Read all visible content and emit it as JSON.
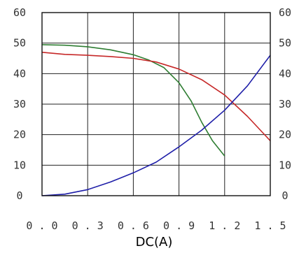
{
  "chart_data": {
    "type": "line",
    "title": "",
    "xlabel": "DC(A)",
    "ylabel": "",
    "xlim": [
      0,
      1.5
    ],
    "ylim": [
      0,
      60
    ],
    "x_ticks": [
      "0.0",
      "0.3",
      "0.6",
      "0.9",
      "1.2",
      "1.5"
    ],
    "y_ticks_left": [
      "0",
      "10",
      "20",
      "30",
      "40",
      "50",
      "60"
    ],
    "y_ticks_right": [
      "0",
      "10",
      "20",
      "30",
      "40",
      "50",
      "60"
    ],
    "grid": true,
    "legend": "none",
    "series": [
      {
        "color": "#2e7d32",
        "points": [
          [
            0,
            49.5
          ],
          [
            0.15,
            49.3
          ],
          [
            0.3,
            48.8
          ],
          [
            0.45,
            47.8
          ],
          [
            0.6,
            46.2
          ],
          [
            0.7,
            44.5
          ],
          [
            0.8,
            42
          ],
          [
            0.9,
            37
          ],
          [
            0.98,
            31
          ],
          [
            1.05,
            24
          ],
          [
            1.12,
            18
          ],
          [
            1.2,
            13
          ]
        ]
      },
      {
        "color": "#c62828",
        "points": [
          [
            0,
            47
          ],
          [
            0.15,
            46.3
          ],
          [
            0.3,
            46
          ],
          [
            0.45,
            45.6
          ],
          [
            0.6,
            45
          ],
          [
            0.75,
            43.8
          ],
          [
            0.9,
            41.5
          ],
          [
            1.05,
            38
          ],
          [
            1.2,
            33
          ],
          [
            1.35,
            26
          ],
          [
            1.5,
            18
          ]
        ]
      },
      {
        "color": "#1e1ea8",
        "points": [
          [
            0,
            0
          ],
          [
            0.15,
            0.5
          ],
          [
            0.3,
            2
          ],
          [
            0.45,
            4.5
          ],
          [
            0.6,
            7.5
          ],
          [
            0.75,
            11
          ],
          [
            0.9,
            16
          ],
          [
            1.05,
            21.5
          ],
          [
            1.2,
            28
          ],
          [
            1.35,
            36
          ],
          [
            1.5,
            46
          ]
        ]
      }
    ]
  }
}
